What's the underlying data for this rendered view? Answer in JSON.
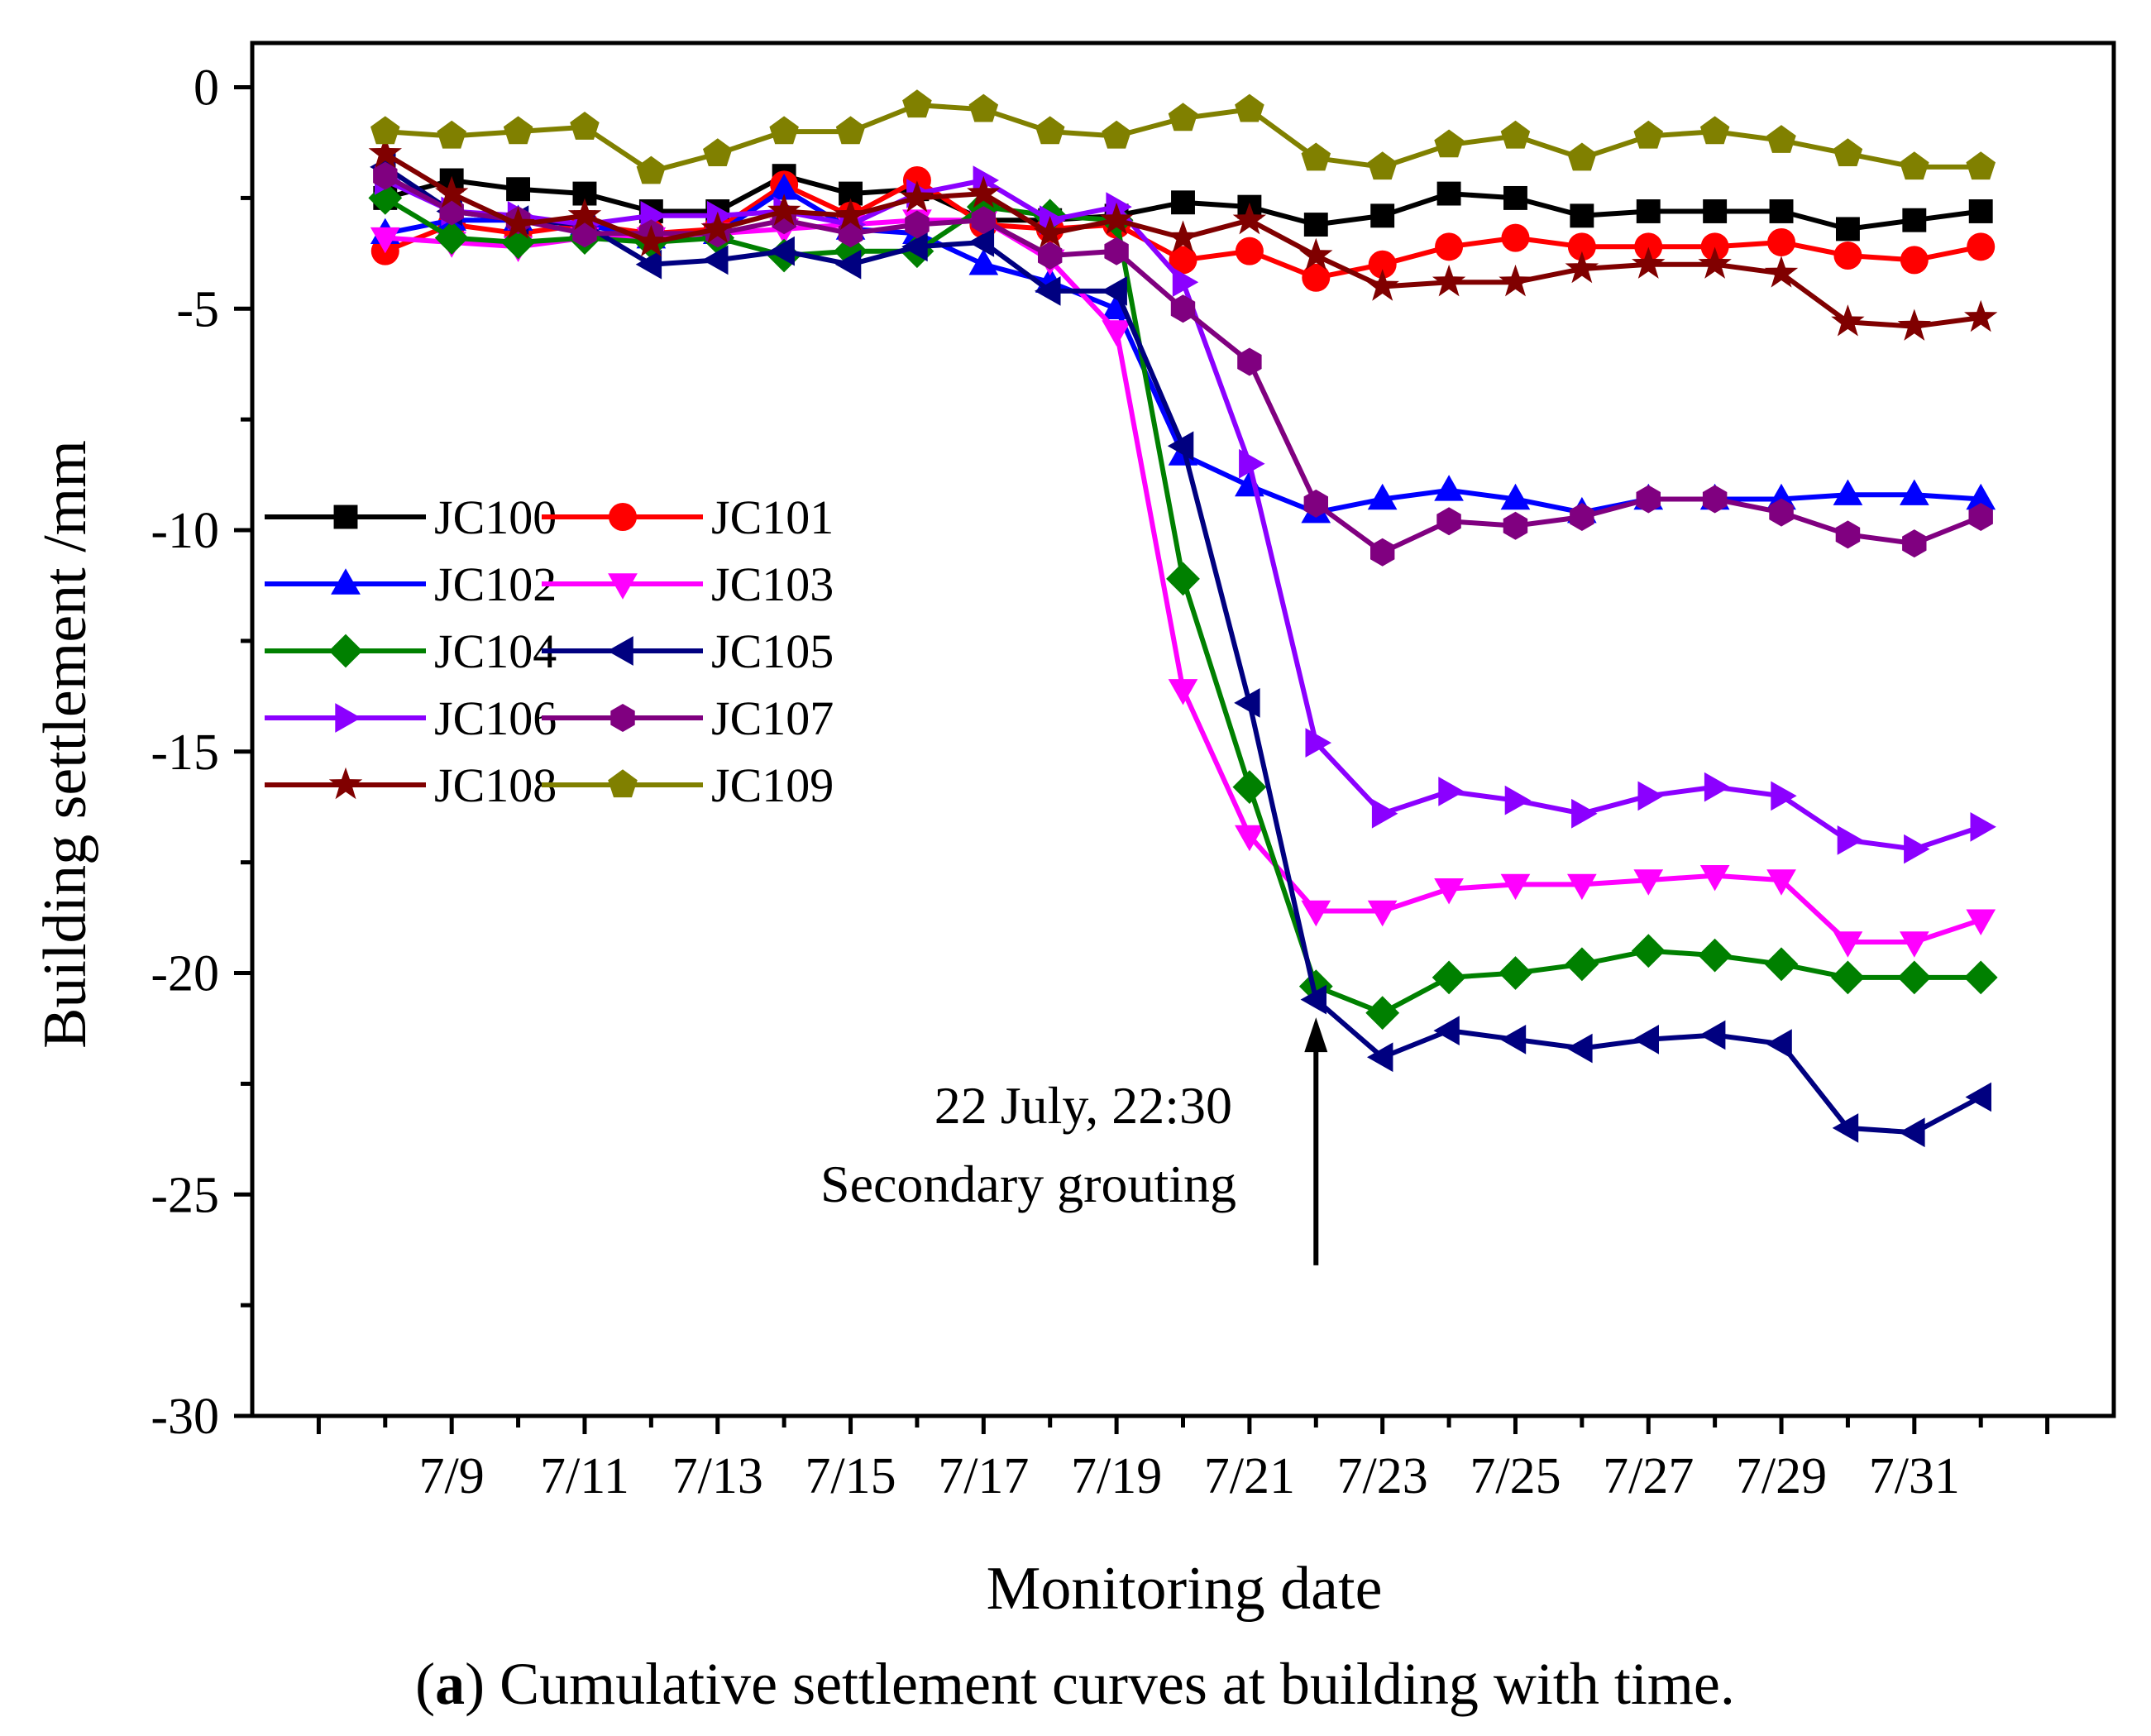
{
  "chart_data": {
    "type": "line",
    "title": "",
    "xlabel": "Monitoring date",
    "ylabel": "Building settlement /mm",
    "ylim": [
      -30,
      1
    ],
    "y_ticks": [
      0,
      -5,
      -10,
      -15,
      -20,
      -25,
      -30
    ],
    "y_tick_labels": [
      "0",
      "-5",
      "-10",
      "-15",
      "-20",
      "-25",
      "-30"
    ],
    "x_tick_labels": [
      "7/9",
      "7/11",
      "7/13",
      "7/15",
      "7/17",
      "7/19",
      "7/21",
      "7/23",
      "7/25",
      "7/27",
      "7/29",
      "7/31"
    ],
    "x_tick_days": [
      9,
      11,
      13,
      15,
      17,
      19,
      21,
      23,
      25,
      27,
      29,
      31
    ],
    "xlim_days": [
      6,
      34
    ],
    "x_days": [
      8,
      9,
      10,
      11,
      12,
      13,
      14,
      15,
      16,
      17,
      18,
      19,
      20,
      21,
      22,
      23,
      24,
      25,
      26,
      27,
      28,
      29,
      30,
      31,
      32
    ],
    "legend_position": "middle-left",
    "grid": false,
    "series": [
      {
        "name": "JC100",
        "color": "#000000",
        "marker": "square",
        "values": [
          -2.5,
          -2.1,
          -2.3,
          -2.4,
          -2.8,
          -2.8,
          -2.0,
          -2.4,
          -2.3,
          -3.0,
          -3.0,
          -2.9,
          -2.6,
          -2.7,
          -3.1,
          -2.9,
          -2.4,
          -2.5,
          -2.9,
          -2.8,
          -2.8,
          -2.8,
          -3.2,
          -3.0,
          -2.8
        ]
      },
      {
        "name": "JC101",
        "color": "#ff0000",
        "marker": "circle",
        "values": [
          -3.7,
          -3.1,
          -3.3,
          -3.1,
          -3.3,
          -3.2,
          -2.2,
          -2.9,
          -2.1,
          -3.1,
          -3.2,
          -3.1,
          -3.9,
          -3.7,
          -4.3,
          -4.0,
          -3.6,
          -3.4,
          -3.6,
          -3.6,
          -3.6,
          -3.5,
          -3.8,
          -3.9,
          -3.6
        ]
      },
      {
        "name": "JC102",
        "color": "#0000ff",
        "marker": "triangle-up",
        "values": [
          -3.3,
          -3.0,
          -3.0,
          -3.1,
          -3.4,
          -3.3,
          -2.3,
          -3.2,
          -3.3,
          -4.0,
          -4.4,
          -5.0,
          -8.3,
          -9.0,
          -9.6,
          -9.3,
          -9.1,
          -9.3,
          -9.6,
          -9.3,
          -9.3,
          -9.3,
          -9.2,
          -9.2,
          -9.3
        ]
      },
      {
        "name": "JC103",
        "color": "#ff00ff",
        "marker": "triangle-down",
        "values": [
          -3.4,
          -3.5,
          -3.6,
          -3.4,
          -3.4,
          -3.3,
          -3.2,
          -3.1,
          -3.0,
          -3.0,
          -3.9,
          -5.5,
          -13.6,
          -16.9,
          -18.6,
          -18.6,
          -18.1,
          -18.0,
          -18.0,
          -17.9,
          -17.8,
          -17.9,
          -19.3,
          -19.3,
          -18.8
        ]
      },
      {
        "name": "JC104",
        "color": "#008000",
        "marker": "diamond",
        "values": [
          -2.5,
          -3.4,
          -3.5,
          -3.4,
          -3.5,
          -3.4,
          -3.8,
          -3.7,
          -3.7,
          -2.7,
          -2.9,
          -3.0,
          -11.1,
          -15.8,
          -20.3,
          -20.9,
          -20.1,
          -20.0,
          -19.8,
          -19.5,
          -19.6,
          -19.8,
          -20.1,
          -20.1,
          -20.1
        ]
      },
      {
        "name": "JC105",
        "color": "#000080",
        "marker": "triangle-left",
        "values": [
          -1.8,
          -2.8,
          -3.0,
          -3.1,
          -4.0,
          -3.9,
          -3.7,
          -4.0,
          -3.6,
          -3.5,
          -4.6,
          -4.6,
          -8.1,
          -13.9,
          -20.6,
          -21.9,
          -21.3,
          -21.5,
          -21.7,
          -21.5,
          -21.4,
          -21.6,
          -23.5,
          -23.6,
          -22.8
        ]
      },
      {
        "name": "JC106",
        "color": "#8b00ff",
        "marker": "triangle-right",
        "values": [
          -2.1,
          -2.8,
          -2.9,
          -3.1,
          -2.9,
          -2.9,
          -2.8,
          -3.1,
          -2.4,
          -2.1,
          -3.0,
          -2.7,
          -4.4,
          -8.5,
          -14.8,
          -16.4,
          -15.9,
          -16.1,
          -16.4,
          -16.0,
          -15.8,
          -16.0,
          -17.0,
          -17.2,
          -16.7
        ]
      },
      {
        "name": "JC107",
        "color": "#800080",
        "marker": "hexagon",
        "values": [
          -2.0,
          -2.8,
          -3.0,
          -3.3,
          -3.3,
          -3.3,
          -3.0,
          -3.3,
          -3.1,
          -3.0,
          -3.8,
          -3.7,
          -5.0,
          -6.2,
          -9.4,
          -10.5,
          -9.8,
          -9.9,
          -9.7,
          -9.3,
          -9.3,
          -9.6,
          -10.1,
          -10.3,
          -9.7
        ]
      },
      {
        "name": "JC108",
        "color": "#800000",
        "marker": "star",
        "values": [
          -1.5,
          -2.4,
          -3.1,
          -2.9,
          -3.5,
          -3.2,
          -2.8,
          -2.9,
          -2.5,
          -2.4,
          -3.3,
          -3.0,
          -3.4,
          -3.0,
          -3.8,
          -4.5,
          -4.4,
          -4.4,
          -4.1,
          -4.0,
          -4.0,
          -4.2,
          -5.3,
          -5.4,
          -5.2
        ]
      },
      {
        "name": "JC109",
        "color": "#808000",
        "marker": "pentagon",
        "values": [
          -1.0,
          -1.1,
          -1.0,
          -0.9,
          -1.9,
          -1.5,
          -1.0,
          -1.0,
          -0.4,
          -0.5,
          -1.0,
          -1.1,
          -0.7,
          -0.5,
          -1.6,
          -1.8,
          -1.3,
          -1.1,
          -1.6,
          -1.1,
          -1.0,
          -1.2,
          -1.5,
          -1.8,
          -1.8
        ]
      }
    ],
    "annotation": {
      "line1": "22 July, 22:30",
      "line2": "Secondary grouting",
      "arrow_day": 22,
      "arrow_from_value": -26.6,
      "arrow_to_value": -21.0
    },
    "caption_prefix": "(",
    "caption_letter": "a",
    "caption_rest": ") Cumulative settlement curves at building with time."
  }
}
